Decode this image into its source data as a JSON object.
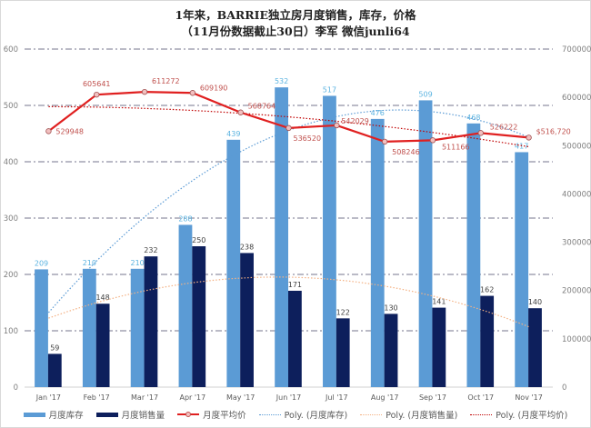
{
  "chart_data": {
    "type": "bar",
    "title": "1年来，BARRIE独立房月度销售，库存，价格",
    "subtitle": "（11月份数据截止30日）李军 微信junli64",
    "categories": [
      "Jan '17",
      "Feb '17",
      "Mar '17",
      "Apr '17",
      "May '17",
      "Jun '17",
      "Jul '17",
      "Aug '17",
      "Sep '17",
      "Oct '17",
      "Nov '17"
    ],
    "series": [
      {
        "name": "月度库存",
        "type": "bar",
        "axis": "left",
        "color": "#5B9BD5",
        "label_color": "#5BB3E0",
        "values": [
          209,
          210,
          210,
          288,
          439,
          532,
          517,
          476,
          509,
          468,
          417
        ]
      },
      {
        "name": "月度销售量",
        "type": "bar",
        "axis": "left",
        "color": "#0D1F5C",
        "label_color": "#404040",
        "values": [
          59,
          148,
          232,
          250,
          238,
          171,
          122,
          130,
          141,
          162,
          140
        ]
      },
      {
        "name": "月度平均价",
        "type": "line",
        "axis": "right",
        "color": "#E02020",
        "label_color": "#C0504D",
        "values": [
          529948,
          605641,
          611272,
          609190,
          568764,
          536520,
          542029,
          508246,
          511166,
          526222,
          516720
        ],
        "labels": [
          "529948",
          "605641",
          "611272",
          "609190",
          "568764",
          "536520",
          "542029",
          "508246",
          "511166",
          "526222",
          "$516,720"
        ]
      }
    ],
    "trendlines": [
      {
        "name": "Poly. (月度库存)",
        "of": "月度库存",
        "color": "#5B9BD5",
        "style": "dotted"
      },
      {
        "name": "Poly. (月度销售量)",
        "of": "月度销售量",
        "color": "#F4B183",
        "style": "dotted"
      },
      {
        "name": "Poly. (月度平均价)",
        "of": "月度平均价",
        "color": "#C00000",
        "style": "dotted"
      }
    ],
    "left_axis": {
      "min": 0,
      "max": 600,
      "ticks": [
        0,
        100,
        200,
        300,
        400,
        500,
        600
      ]
    },
    "right_axis": {
      "min": 0,
      "max": 700000,
      "ticks": [
        0,
        100000,
        200000,
        300000,
        400000,
        500000,
        600000,
        700000
      ]
    },
    "grid": true,
    "legend_position": "bottom",
    "xlabel": "",
    "ylabel": ""
  }
}
